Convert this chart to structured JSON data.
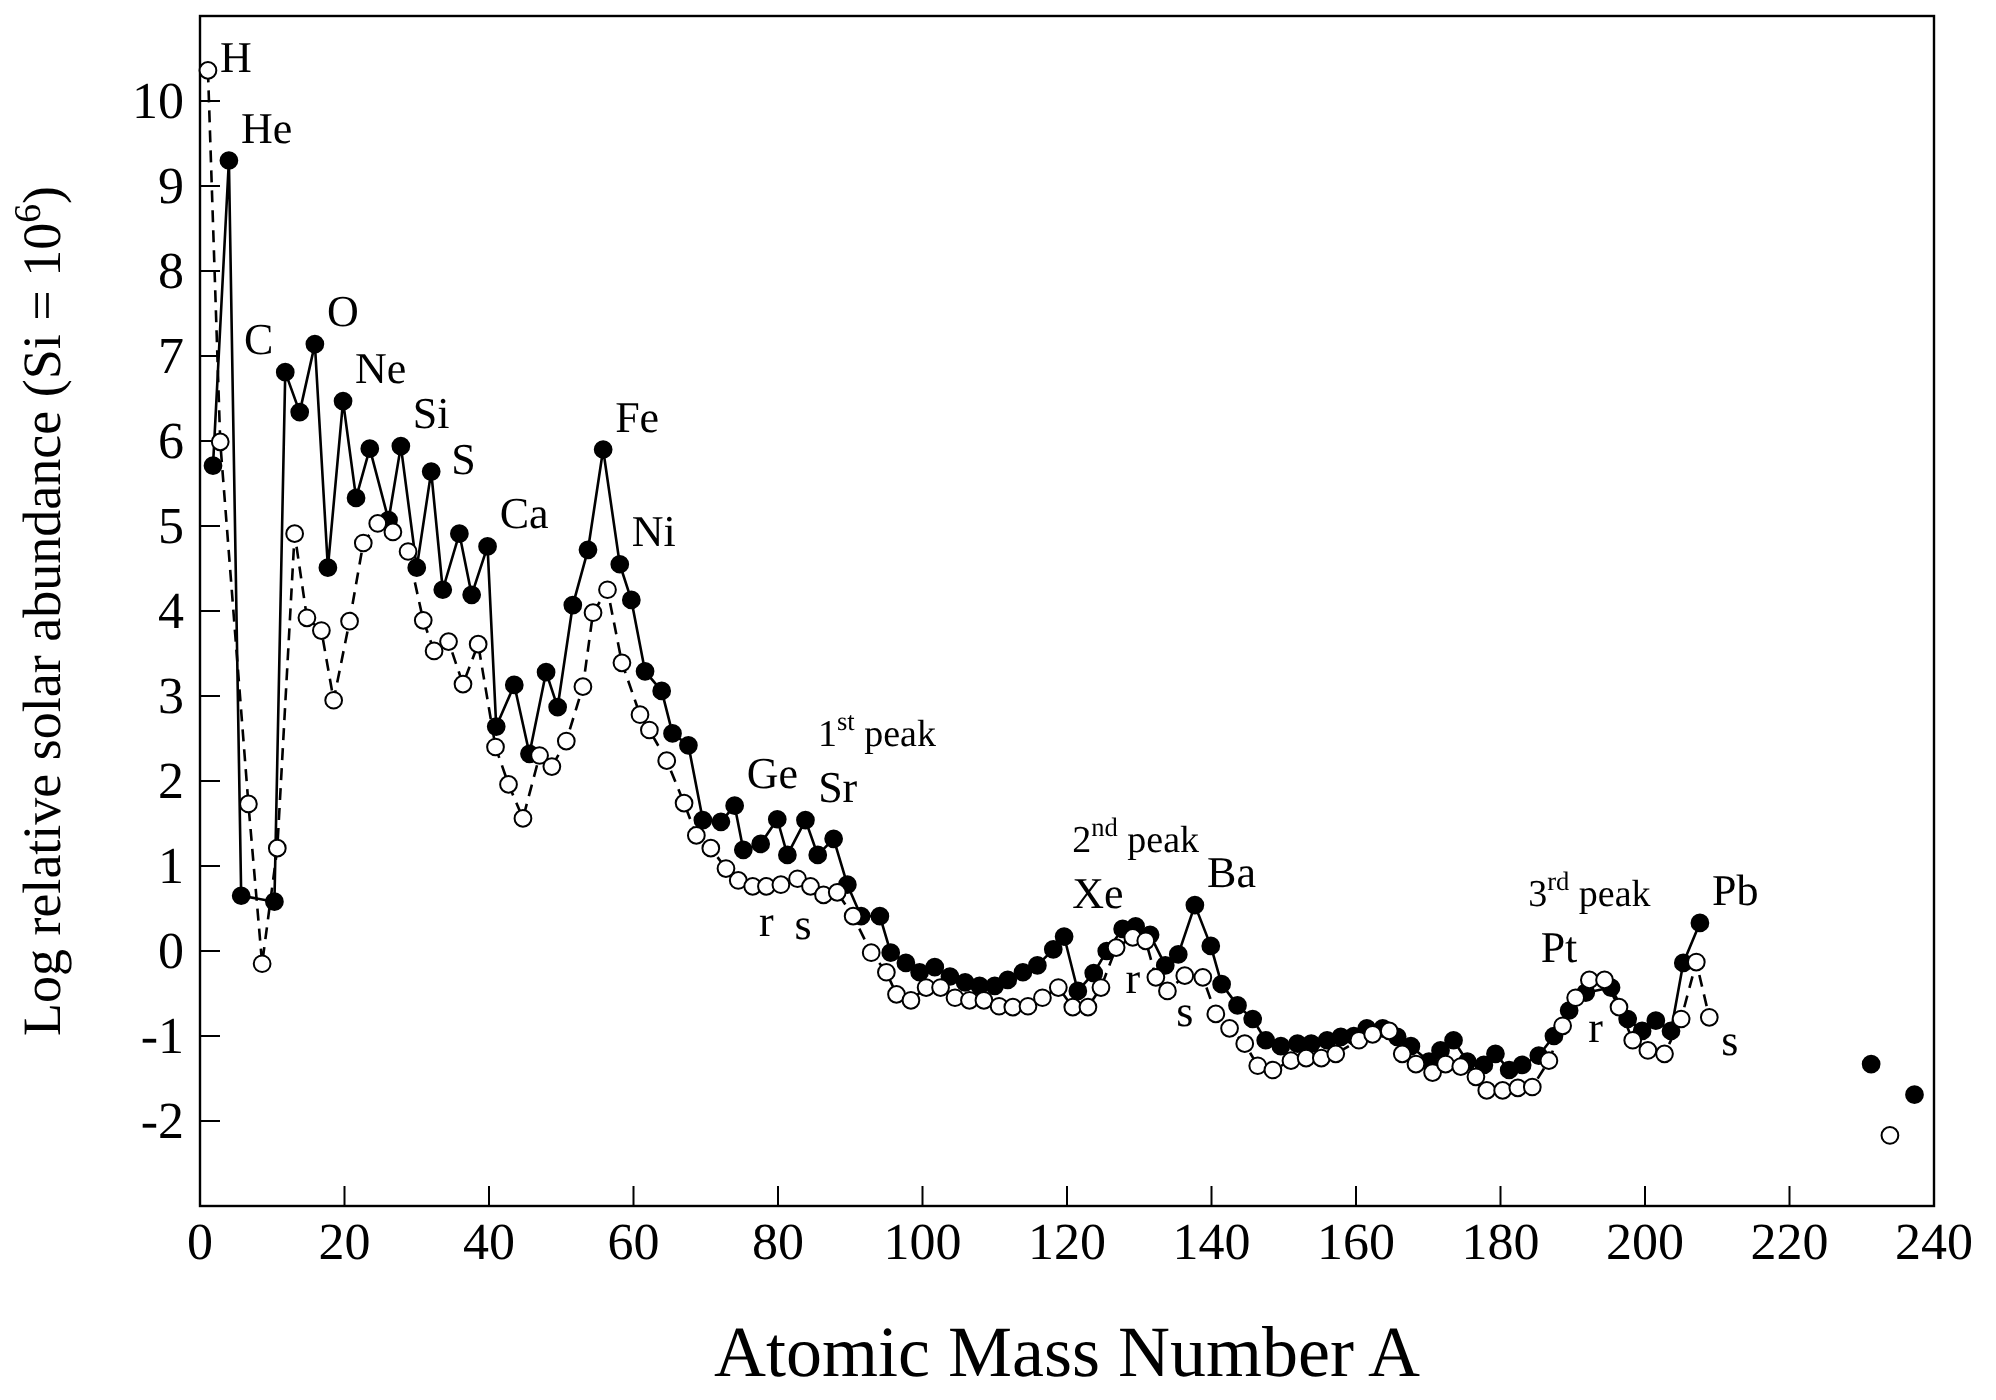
{
  "chart_data": {
    "type": "line",
    "xlabel": "Atomic Mass Number A",
    "ylabel": "Log relative solar abundance (Si = 10$^{6}$)",
    "xlim": [
      0,
      240
    ],
    "xticks": [
      0,
      20,
      40,
      60,
      80,
      100,
      120,
      140,
      160,
      180,
      200,
      220,
      240
    ],
    "ylim": [
      -3,
      11
    ],
    "yticks": [
      -2,
      -1,
      0,
      1,
      2,
      3,
      4,
      5,
      6,
      7,
      8,
      9,
      10
    ],
    "grid": false,
    "marker": "circle",
    "series": [
      {
        "line_style": "solid",
        "color": "#000000",
        "x": [
          1.8,
          4.0,
          5.7,
          10.3,
          11.8,
          13.8,
          15.9,
          17.7,
          19.8,
          21.6,
          23.5,
          26.1,
          27.8,
          30.0,
          32.0,
          33.6,
          35.9,
          37.6,
          39.8,
          41.0,
          43.5,
          45.6,
          47.9,
          49.5,
          51.6,
          53.7,
          55.8,
          58.1,
          59.7,
          61.6,
          63.9,
          65.4,
          67.6,
          69.6,
          72.1,
          74.0,
          75.2,
          77.6,
          79.9,
          81.3,
          83.8,
          85.5,
          87.7,
          89.6,
          91.5,
          94.1,
          95.6,
          97.7,
          99.6,
          101.7,
          103.8,
          105.9,
          107.9,
          110.0,
          111.8,
          113.9,
          115.9,
          118.1,
          119.6,
          121.5,
          123.7,
          125.5,
          127.7,
          129.5,
          131.5,
          133.6,
          135.4,
          137.7,
          139.9,
          141.4,
          143.6,
          145.7,
          147.5,
          149.6,
          151.9,
          153.8,
          156.0,
          157.9,
          159.7,
          161.5,
          163.7,
          165.7,
          167.6,
          170.1,
          171.7,
          173.5,
          175.4,
          177.7,
          179.3,
          181.2,
          183.0,
          185.3,
          187.4,
          189.5,
          191.8,
          195.3,
          197.6,
          199.6,
          201.5,
          203.6,
          205.3,
          207.6
        ],
        "values": [
          5.71,
          9.3,
          0.65,
          0.58,
          6.81,
          6.34,
          7.14,
          4.51,
          6.47,
          5.33,
          5.91,
          5.07,
          5.94,
          4.51,
          5.64,
          4.25,
          4.91,
          4.19,
          4.76,
          2.64,
          3.13,
          2.32,
          3.28,
          2.87,
          4.07,
          4.72,
          5.9,
          4.55,
          4.13,
          3.29,
          3.06,
          2.56,
          2.42,
          1.54,
          1.52,
          1.71,
          1.19,
          1.26,
          1.55,
          1.13,
          1.54,
          1.13,
          1.32,
          0.78,
          0.41,
          0.41,
          -0.02,
          -0.14,
          -0.25,
          -0.19,
          -0.3,
          -0.37,
          -0.41,
          -0.41,
          -0.34,
          -0.25,
          -0.17,
          0.02,
          0.17,
          -0.47,
          -0.26,
          0.0,
          0.26,
          0.29,
          0.19,
          -0.17,
          -0.04,
          0.54,
          0.06,
          -0.39,
          -0.64,
          -0.8,
          -1.05,
          -1.12,
          -1.09,
          -1.09,
          -1.05,
          -1.01,
          -1.0,
          -0.91,
          -0.91,
          -1.01,
          -1.12,
          -1.3,
          -1.17,
          -1.05,
          -1.3,
          -1.34,
          -1.21,
          -1.4,
          -1.34,
          -1.23,
          -1.0,
          -0.7,
          -0.49,
          -0.43,
          -0.8,
          -0.94,
          -0.82,
          -0.94,
          -0.14,
          0.33
        ]
      },
      {
        "line_style": "dashed",
        "color": "#ffffff",
        "x": [
          1.1,
          2.8,
          6.7,
          8.6,
          10.7,
          13.1,
          14.8,
          16.8,
          18.5,
          20.7,
          22.6,
          24.6,
          26.7,
          28.8,
          30.9,
          32.4,
          34.4,
          36.4,
          38.5,
          40.9,
          42.7,
          44.7,
          47.0,
          48.7,
          50.7,
          53.0,
          54.4,
          56.4,
          58.4,
          60.9,
          62.2,
          64.6,
          67.0,
          68.7,
          70.7,
          72.8,
          74.5,
          76.5,
          78.4,
          80.4,
          82.7,
          84.5,
          86.3,
          88.2,
          90.4,
          92.9,
          95.0,
          96.4,
          98.4,
          100.5,
          102.5,
          104.5,
          106.5,
          108.5,
          110.6,
          112.5,
          114.6,
          116.6,
          118.8,
          120.8,
          122.9,
          124.7,
          126.8,
          129.1,
          130.9,
          132.3,
          133.9,
          136.3,
          138.8,
          140.6,
          142.5,
          144.6,
          146.4,
          148.5,
          151.0,
          153.1,
          155.2,
          157.2,
          160.4,
          162.3,
          164.6,
          166.4,
          168.3,
          170.6,
          172.4,
          174.5,
          176.6,
          178.1,
          180.3,
          182.4,
          184.4,
          186.7,
          188.6,
          190.4,
          192.3,
          194.4,
          196.4,
          198.3,
          200.4,
          202.7,
          205.0,
          207.1,
          208.9
        ],
        "values": [
          10.36,
          5.99,
          1.73,
          -0.15,
          1.21,
          4.91,
          3.92,
          3.77,
          2.95,
          3.88,
          4.8,
          5.03,
          4.93,
          4.7,
          3.89,
          3.53,
          3.64,
          3.14,
          3.61,
          2.4,
          1.96,
          1.56,
          2.3,
          2.17,
          2.47,
          3.11,
          3.98,
          4.25,
          3.39,
          2.78,
          2.6,
          2.24,
          1.74,
          1.36,
          1.21,
          0.97,
          0.83,
          0.76,
          0.76,
          0.78,
          0.85,
          0.76,
          0.66,
          0.69,
          0.41,
          -0.02,
          -0.25,
          -0.51,
          -0.58,
          -0.43,
          -0.43,
          -0.55,
          -0.58,
          -0.58,
          -0.65,
          -0.66,
          -0.65,
          -0.55,
          -0.43,
          -0.66,
          -0.66,
          -0.43,
          0.04,
          0.16,
          0.12,
          -0.31,
          -0.47,
          -0.29,
          -0.31,
          -0.74,
          -0.91,
          -1.09,
          -1.35,
          -1.4,
          -1.29,
          -1.26,
          -1.26,
          -1.21,
          -1.05,
          -0.98,
          -0.94,
          -1.21,
          -1.33,
          -1.43,
          -1.33,
          -1.36,
          -1.48,
          -1.64,
          -1.64,
          -1.61,
          -1.6,
          -1.29,
          -0.88,
          -0.55,
          -0.34,
          -0.34,
          -0.66,
          -1.05,
          -1.17,
          -1.21,
          -0.8,
          -0.13,
          -0.78
        ]
      },
      {
        "type": "scatter",
        "color": "#000000",
        "x": [
          231.3,
          237.3
        ],
        "values": [
          -1.33,
          -1.69
        ]
      },
      {
        "type": "scatter",
        "color": "#ffffff",
        "x": [
          233.9
        ],
        "values": [
          -2.17
        ]
      }
    ],
    "annotations": [
      {
        "text": "H",
        "x": 1.1,
        "y": 10.36
      },
      {
        "text": "He",
        "x": 4.0,
        "y": 9.3
      },
      {
        "text": "C",
        "x": 11.8,
        "y": 6.81
      },
      {
        "text": "O",
        "x": 15.9,
        "y": 7.14
      },
      {
        "text": "Ne",
        "x": 19.8,
        "y": 6.47
      },
      {
        "text": "Si",
        "x": 27.8,
        "y": 5.94
      },
      {
        "text": "S",
        "x": 32.0,
        "y": 5.64
      },
      {
        "text": "Ca",
        "x": 39.8,
        "y": 4.76
      },
      {
        "text": "Fe",
        "x": 55.8,
        "y": 5.9
      },
      {
        "text": "Ni",
        "x": 58.1,
        "y": 4.55
      },
      {
        "text": "Ge",
        "x": 74.0,
        "y": 1.71
      },
      {
        "text": "Sr",
        "x": 83.8,
        "y": 1.54
      },
      {
        "text": "Xe",
        "x": 129.5,
        "y": 0.29
      },
      {
        "text": "Ba",
        "x": 137.7,
        "y": 0.54
      },
      {
        "text": "Pt",
        "x": 192.3,
        "y": -0.34
      },
      {
        "text": "Pb",
        "x": 207.6,
        "y": 0.33
      },
      {
        "text": "1$^{st}$ peak",
        "x": 83.8,
        "y": 1.54
      },
      {
        "text": "2$^{nd}$ peak",
        "x": 129.5,
        "y": 0.29
      },
      {
        "text": "3$^{rd}$ peak",
        "x": 192.3,
        "y": -0.34
      },
      {
        "text": "r",
        "x": 78.4,
        "y": 0.76
      },
      {
        "text": "r",
        "x": 129.1,
        "y": 0.16
      },
      {
        "text": "r",
        "x": 190.4,
        "y": -0.55
      },
      {
        "text": "s",
        "x": 86.3,
        "y": 0.66
      },
      {
        "text": "s",
        "x": 136.3,
        "y": -0.29
      },
      {
        "text": "s",
        "x": 208.9,
        "y": -0.78
      }
    ]
  }
}
